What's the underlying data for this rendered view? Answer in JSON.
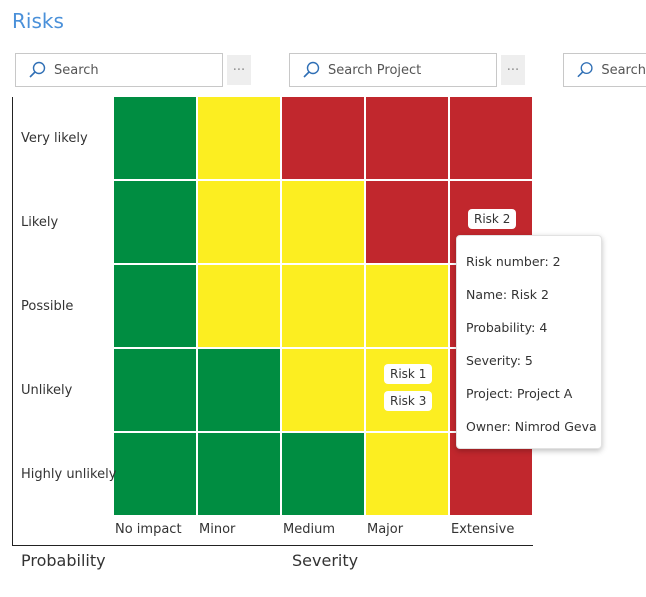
{
  "header": {
    "title": "Risks"
  },
  "filters": {
    "search1_placeholder": "Search",
    "search2_placeholder": "Search Project",
    "search3_placeholder": "Search",
    "more_label": "···"
  },
  "colors": {
    "green": "#008d41",
    "yellow": "#fcee21",
    "red": "#c1272d"
  },
  "matrix": {
    "rows": [
      "Very likely",
      "Likely",
      "Possible",
      "Unlikely",
      "Highly unlikely"
    ],
    "columns": [
      "No impact",
      "Minor",
      "Medium",
      "Major",
      "Extensive"
    ],
    "cells": [
      [
        "green",
        "yellow",
        "red",
        "red",
        "red"
      ],
      [
        "green",
        "yellow",
        "yellow",
        "red",
        "red"
      ],
      [
        "green",
        "yellow",
        "yellow",
        "yellow",
        "red"
      ],
      [
        "green",
        "green",
        "yellow",
        "yellow",
        "red"
      ],
      [
        "green",
        "green",
        "green",
        "yellow",
        "red"
      ]
    ],
    "y_axis_title": "Probability",
    "x_axis_title": "Severity"
  },
  "risks": [
    {
      "label": "Risk 2",
      "probability": 4,
      "severity": 5
    },
    {
      "label": "Risk 1",
      "probability": 2,
      "severity": 4
    },
    {
      "label": "Risk 3",
      "probability": 2,
      "severity": 4
    }
  ],
  "tooltip": {
    "risk_number": "Risk number: 2",
    "name": "Name: Risk 2",
    "probability": "Probability: 4",
    "severity": "Severity: 5",
    "project": "Project: Project A",
    "owner": "Owner: Nimrod Geva"
  }
}
